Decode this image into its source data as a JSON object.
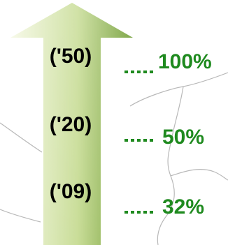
{
  "milestones": [
    {
      "year": "('50)",
      "percent": "100%"
    },
    {
      "year": "('20)",
      "percent": "50%"
    },
    {
      "year": "('09)",
      "percent": "32%"
    }
  ],
  "colors": {
    "arrow_light": "#f1f6dc",
    "arrow_dark": "#6e9b32",
    "percent_text": "#1f8a1f",
    "year_text": "#000000",
    "map_lines": "#b8b8b8"
  }
}
